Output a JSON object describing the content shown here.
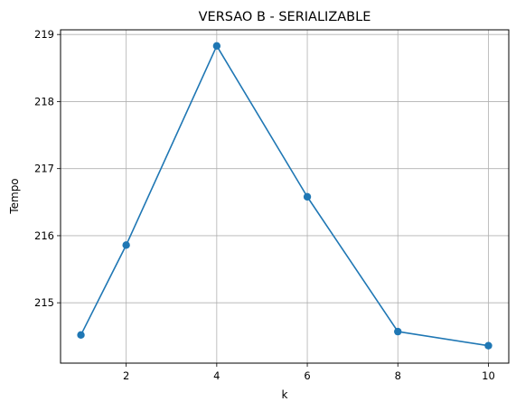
{
  "chart_data": {
    "type": "line",
    "title": "VERSAO B - SERIALIZABLE",
    "xlabel": "k",
    "ylabel": "Tempo",
    "xlim": [
      0.55,
      10.45
    ],
    "ylim": [
      214.1,
      219.07
    ],
    "xticks": [
      2,
      4,
      6,
      8,
      10
    ],
    "yticks": [
      215,
      216,
      217,
      218,
      219
    ],
    "grid": true,
    "series": [
      {
        "color": "#1f77b4",
        "marker": "circle",
        "x": [
          1,
          2,
          4,
          6,
          8,
          10
        ],
        "y": [
          214.52,
          215.86,
          218.83,
          216.58,
          214.57,
          214.36
        ]
      }
    ]
  }
}
